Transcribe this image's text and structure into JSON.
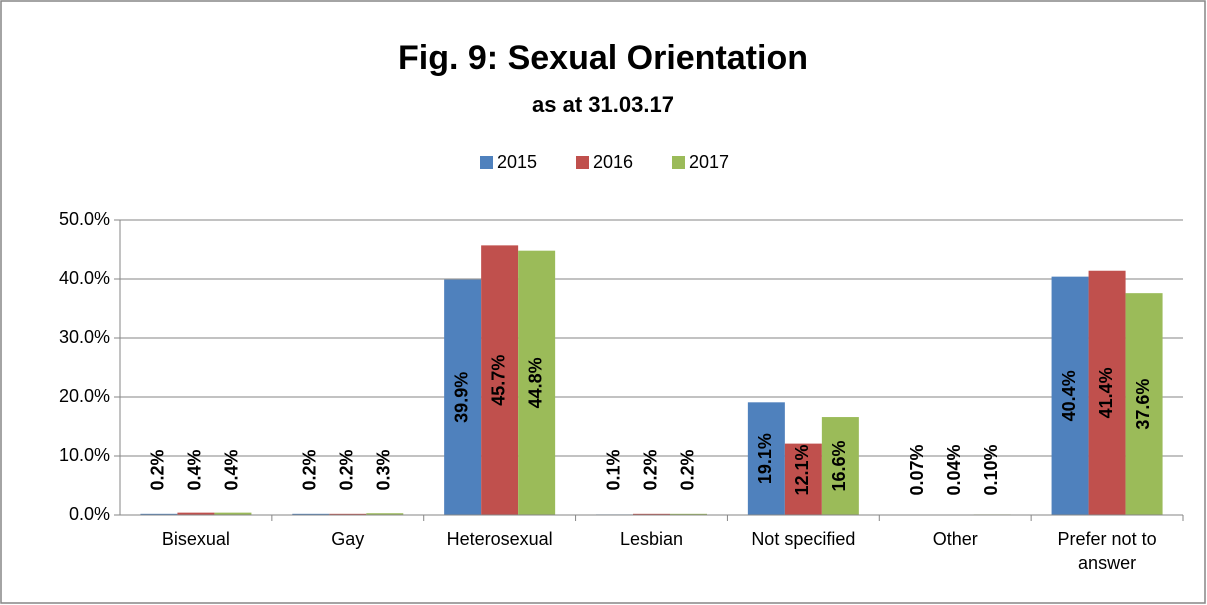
{
  "chart_data": {
    "type": "bar",
    "title": "Fig. 9: Sexual Orientation",
    "subtitle": "as at 31.03.17",
    "categories": [
      "Bisexual",
      "Gay",
      "Heterosexual",
      "Lesbian",
      "Not specified",
      "Other",
      "Prefer not to answer"
    ],
    "series": [
      {
        "name": "2015",
        "color": "#4f81bd",
        "values": [
          0.2,
          0.2,
          39.9,
          0.1,
          19.1,
          0.07,
          40.4
        ],
        "value_labels": [
          "0.2%",
          "0.2%",
          "39.9%",
          "0.1%",
          "19.1%",
          "0.07%",
          "40.4%"
        ]
      },
      {
        "name": "2016",
        "color": "#c0504d",
        "values": [
          0.4,
          0.2,
          45.7,
          0.2,
          12.1,
          0.04,
          41.4
        ],
        "value_labels": [
          "0.4%",
          "0.2%",
          "45.7%",
          "0.2%",
          "12.1%",
          "0.04%",
          "41.4%"
        ]
      },
      {
        "name": "2017",
        "color": "#9bbb59",
        "values": [
          0.4,
          0.3,
          44.8,
          0.2,
          16.6,
          0.1,
          37.6
        ],
        "value_labels": [
          "0.4%",
          "0.3%",
          "44.8%",
          "0.2%",
          "16.6%",
          "0.10%",
          "37.6%"
        ]
      }
    ],
    "ylim": [
      0,
      50
    ],
    "yticks": [
      {
        "value": 0,
        "label": "0.0%"
      },
      {
        "value": 10,
        "label": "10.0%"
      },
      {
        "value": 20,
        "label": "20.0%"
      },
      {
        "value": 30,
        "label": "30.0%"
      },
      {
        "value": 40,
        "label": "40.0%"
      },
      {
        "value": 50,
        "label": "50.0%"
      }
    ],
    "grid": true,
    "legend": "top"
  }
}
